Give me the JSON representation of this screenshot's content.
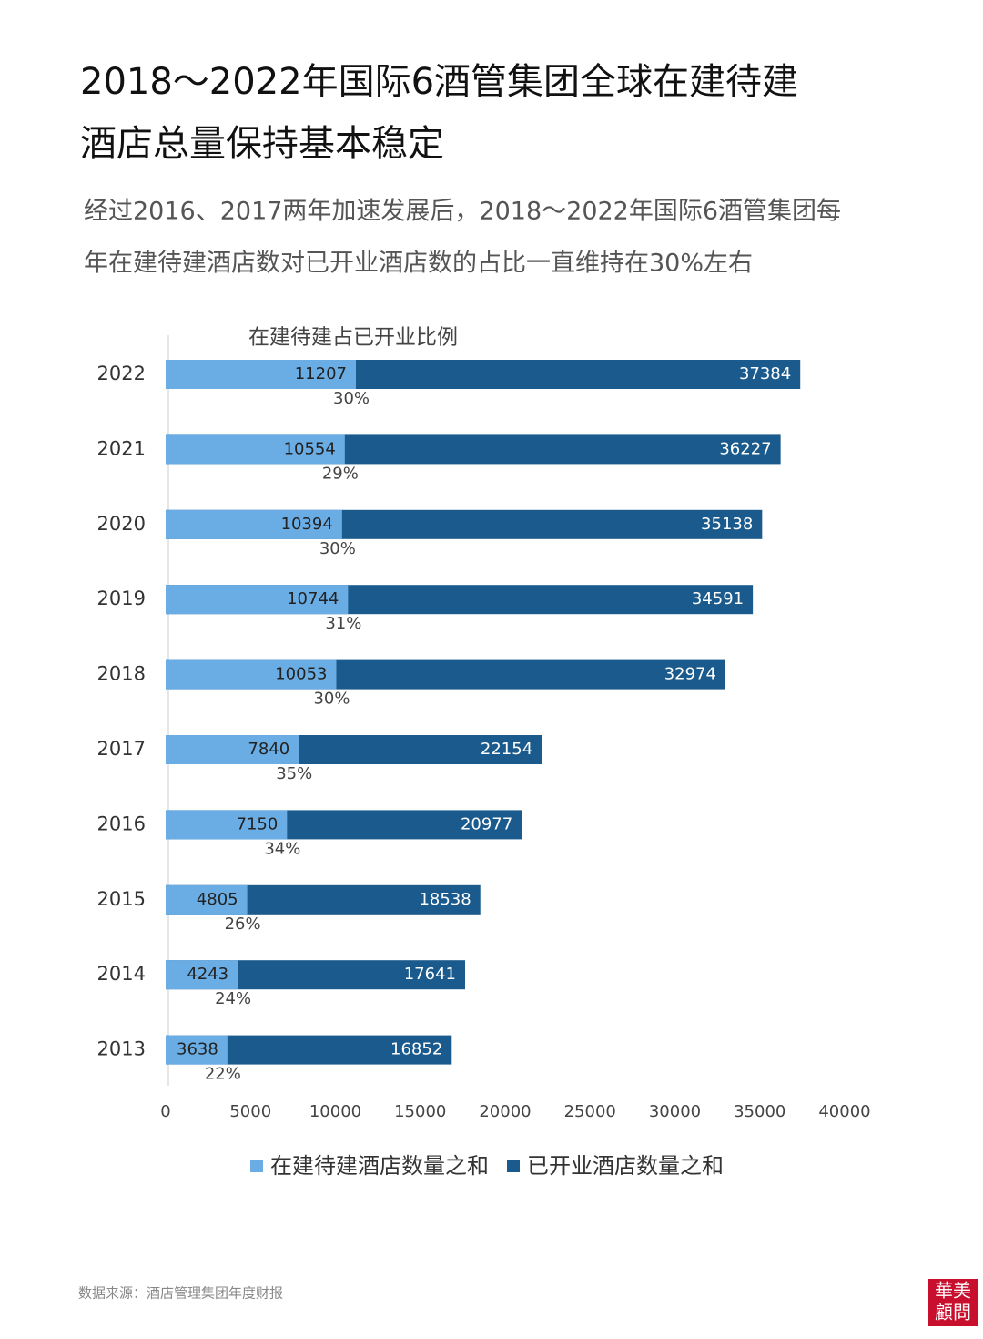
{
  "chart_data": {
    "type": "bar",
    "orientation": "horizontal",
    "overlap": true,
    "title_lines": [
      "2018～2022年国际6酒管集团全球在建待建",
      "酒店总量保持基本稳定"
    ],
    "subtitle_lines": [
      "经过2016、2017两年加速发展后，2018～2022年国际6酒管集团每",
      "年在建待建酒店数对已开业酒店数的占比一直维持在30%左右"
    ],
    "ratio_title": "在建待建占已开业比例",
    "categories": [
      "2022",
      "2021",
      "2020",
      "2019",
      "2018",
      "2017",
      "2016",
      "2015",
      "2014",
      "2013"
    ],
    "series": [
      {
        "name": "已开业酒店数量之和",
        "color": "#1a5a8c",
        "values": [
          37384,
          36227,
          35138,
          34591,
          32974,
          22154,
          20977,
          18538,
          17641,
          16852
        ]
      },
      {
        "name": "在建待建酒店数量之和",
        "color": "#6aade4",
        "values": [
          11207,
          10554,
          10394,
          10744,
          10053,
          7840,
          7150,
          4805,
          4243,
          3638
        ]
      }
    ],
    "ratio_labels": [
      "30%",
      "29%",
      "30%",
      "31%",
      "30%",
      "35%",
      "34%",
      "26%",
      "24%",
      "22%"
    ],
    "xlim": [
      0,
      40000
    ],
    "xticks": [
      0,
      5000,
      10000,
      15000,
      20000,
      25000,
      30000,
      35000,
      40000
    ],
    "source": "数据来源：酒店管理集团年度财报",
    "logo": [
      "華美",
      "顧問"
    ]
  }
}
